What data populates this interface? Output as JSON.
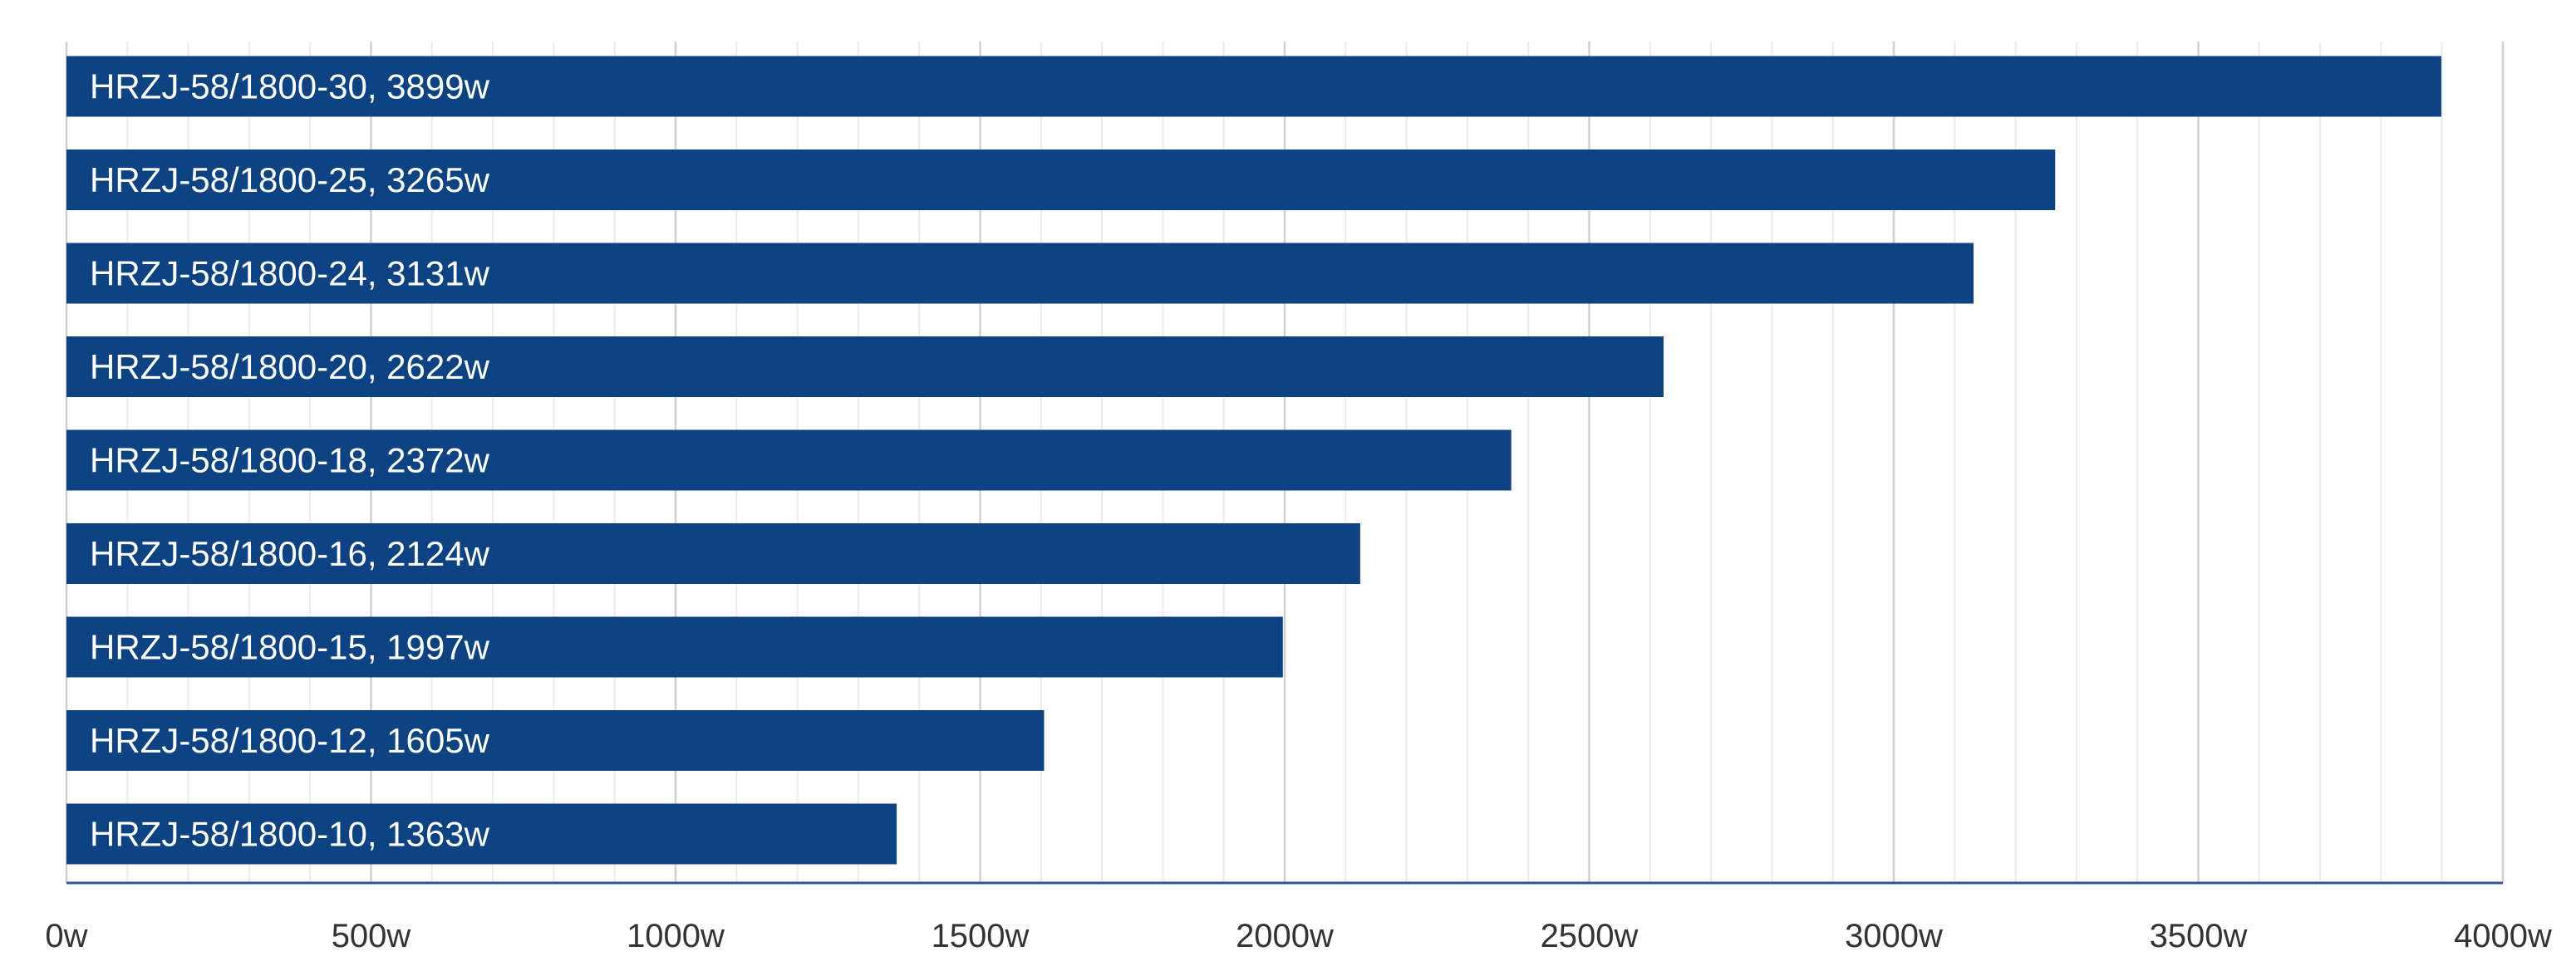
{
  "chart_data": {
    "type": "bar",
    "orientation": "horizontal",
    "title": "",
    "xlabel": "",
    "ylabel": "",
    "categories": [
      "HRZJ-58/1800-30",
      "HRZJ-58/1800-25",
      "HRZJ-58/1800-24",
      "HRZJ-58/1800-20",
      "HRZJ-58/1800-18",
      "HRZJ-58/1800-16",
      "HRZJ-58/1800-15",
      "HRZJ-58/1800-12",
      "HRZJ-58/1800-10"
    ],
    "values": [
      3899,
      3265,
      3131,
      2622,
      2372,
      2124,
      1997,
      1605,
      1363
    ],
    "bar_labels": [
      "HRZJ-58/1800-30, 3899w",
      "HRZJ-58/1800-25, 3265w",
      "HRZJ-58/1800-24, 3131w",
      "HRZJ-58/1800-20, 2622w",
      "HRZJ-58/1800-18, 2372w",
      "HRZJ-58/1800-16, 2124w",
      "HRZJ-58/1800-15, 1997w",
      "HRZJ-58/1800-12, 1605w",
      "HRZJ-58/1800-10, 1363w"
    ],
    "x_ticks": [
      0,
      500,
      1000,
      1500,
      2000,
      2500,
      3000,
      3500,
      4000
    ],
    "x_tick_labels": [
      "0w",
      "500w",
      "1000w",
      "1500w",
      "2000w",
      "2500w",
      "3000w",
      "3500w",
      "4000w"
    ],
    "xlim": [
      0,
      4000
    ],
    "minor_step": 100,
    "grid": true,
    "legend": "none",
    "colors": {
      "bar": "#0d4382",
      "axis": "#2f5597",
      "major_grid": "#d0d0d0",
      "minor_grid": "#ececec"
    }
  }
}
